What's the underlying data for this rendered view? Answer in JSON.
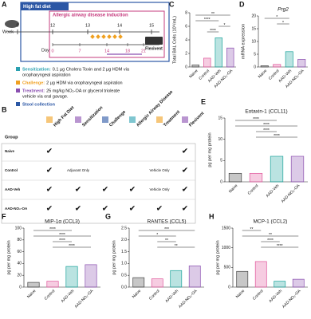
{
  "panel_letters": [
    "A",
    "B",
    "C",
    "D",
    "E",
    "F",
    "G",
    "H"
  ],
  "diagram_a": {
    "outer_label": "High fat diet",
    "inner_label": "Allergic airway disease induction",
    "week_label": "Week",
    "weeks": [
      "0",
      "12",
      "13",
      "14",
      "15"
    ],
    "day_label": "Day",
    "days": [
      "0",
      "7",
      "14",
      "18",
      "21"
    ],
    "end_label": "Flexivent",
    "legend": [
      {
        "label": "Sensitization:",
        "lines": [
          "0.1 µg Cholera Toxin and 2 µg HDM via",
          "oropharyngeal aspiration"
        ]
      },
      {
        "label": "Challenge:",
        "lines": [
          "2 µg HDM via oropharyngeal aspiration"
        ]
      },
      {
        "label": "Treatment:",
        "lines": [
          "25 mg/kg NO₂-OA or glycerol trioleate",
          "vehicle via oral gavage."
        ]
      },
      {
        "label": "Stool collection",
        "lines": []
      }
    ]
  },
  "table_b": {
    "columns": [
      "Group",
      "High Fat Diet",
      "Sensitization",
      "Challenge",
      "Allergic Airway Disease",
      "Treatment",
      "Flexivent"
    ],
    "rows": [
      [
        "Naive",
        "✔",
        "",
        "",
        "",
        "",
        "✔"
      ],
      [
        "Control",
        "✔",
        "Adjuvant Only",
        "",
        "",
        "Vehicle Only",
        "✔"
      ],
      [
        "AAD-Veh",
        "✔",
        "✔",
        "✔",
        "✔",
        "Vehicle Only",
        "✔"
      ],
      [
        "AAD-NO₂-OA",
        "✔",
        "✔",
        "✔",
        "✔",
        "✔",
        "✔"
      ]
    ]
  },
  "chart_data": [
    {
      "type": "bar",
      "ylabel": "Total BAL Cells (10⁵/mL)",
      "categories": [
        "Naive",
        "Control",
        "AAD-Veh",
        "AAD-NO₂-OA"
      ],
      "values": [
        0.3,
        1.3,
        4.3,
        2.8
      ],
      "colors": [
        "#444444",
        "#e0559a",
        "#1aa39a",
        "#8a4fb0"
      ],
      "ylim": [
        0,
        8
      ],
      "yticks": [
        0,
        2,
        4,
        6,
        8
      ],
      "significance": [
        "**",
        "****",
        "*",
        "****"
      ]
    },
    {
      "type": "bar",
      "title": "Prg2",
      "ylabel": "mRNA expression",
      "categories": [
        "Naive",
        "Control",
        "AAD-Veh",
        "AAD-NO₂-OA"
      ],
      "values": [
        0.5,
        1,
        6,
        3
      ],
      "colors": [
        "#444444",
        "#e0559a",
        "#1aa39a",
        "#8a4fb0"
      ],
      "ylim": [
        0,
        20
      ],
      "yticks": [
        0,
        5,
        10,
        15,
        20
      ],
      "significance": [
        "*",
        "*"
      ]
    },
    {
      "type": "bar",
      "title": "Eotaxin-1 (CCL11)",
      "ylabel": "pg per mg protein",
      "categories": [
        "Naive",
        "Control",
        "AAD-Veh",
        "AAD-NO₂-OA"
      ],
      "values": [
        2,
        2,
        6,
        6
      ],
      "colors": [
        "#444444",
        "#e0559a",
        "#1aa39a",
        "#8a4fb0"
      ],
      "ylim": [
        0,
        15
      ],
      "yticks": [
        0,
        5,
        10,
        15
      ],
      "significance": [
        "****",
        "****",
        "****",
        "****"
      ]
    },
    {
      "type": "bar",
      "title": "MIP-1α (CCL3)",
      "ylabel": "pg per mg protein",
      "categories": [
        "Naive",
        "Control",
        "AAD-Veh",
        "AAD-NO₂-OA"
      ],
      "values": [
        8,
        10,
        35,
        38
      ],
      "colors": [
        "#444444",
        "#e0559a",
        "#1aa39a",
        "#8a4fb0"
      ],
      "ylim": [
        0,
        100
      ],
      "yticks": [
        0,
        20,
        40,
        60,
        80,
        100
      ],
      "significance": [
        "****",
        "****",
        "****",
        "****"
      ]
    },
    {
      "type": "bar",
      "title": "RANTES (CCL5)",
      "ylabel": "pg per mg protein",
      "categories": [
        "Naive",
        "Control",
        "AAD-Veh",
        "AAD-NO₂-OA"
      ],
      "values": [
        0.4,
        0.35,
        0.7,
        0.9
      ],
      "colors": [
        "#444444",
        "#e0559a",
        "#1aa39a",
        "#8a4fb0"
      ],
      "ylim": [
        0,
        2.5
      ],
      "yticks": [
        {
          "value": 0,
          "label": "0.0"
        },
        0.5,
        {
          "value": 1,
          "label": "1.0"
        },
        1.5,
        {
          "value": 2,
          "label": "2.0"
        },
        2.5
      ],
      "significance": [
        "***",
        "*",
        "**",
        "**"
      ]
    },
    {
      "type": "bar",
      "title": "MCP-1 (CCL2)",
      "ylabel": "pg per mg protein",
      "categories": [
        "Naive",
        "Control",
        "AAD-Veh",
        "AAD-NO₂-OA"
      ],
      "values": [
        400,
        650,
        150,
        200
      ],
      "colors": [
        "#444444",
        "#e0559a",
        "#1aa39a",
        "#8a4fb0"
      ],
      "ylim": [
        0,
        1500
      ],
      "yticks": [
        0,
        500,
        1000,
        1500
      ],
      "significance": [
        "**",
        "**",
        "****",
        "****"
      ]
    }
  ]
}
